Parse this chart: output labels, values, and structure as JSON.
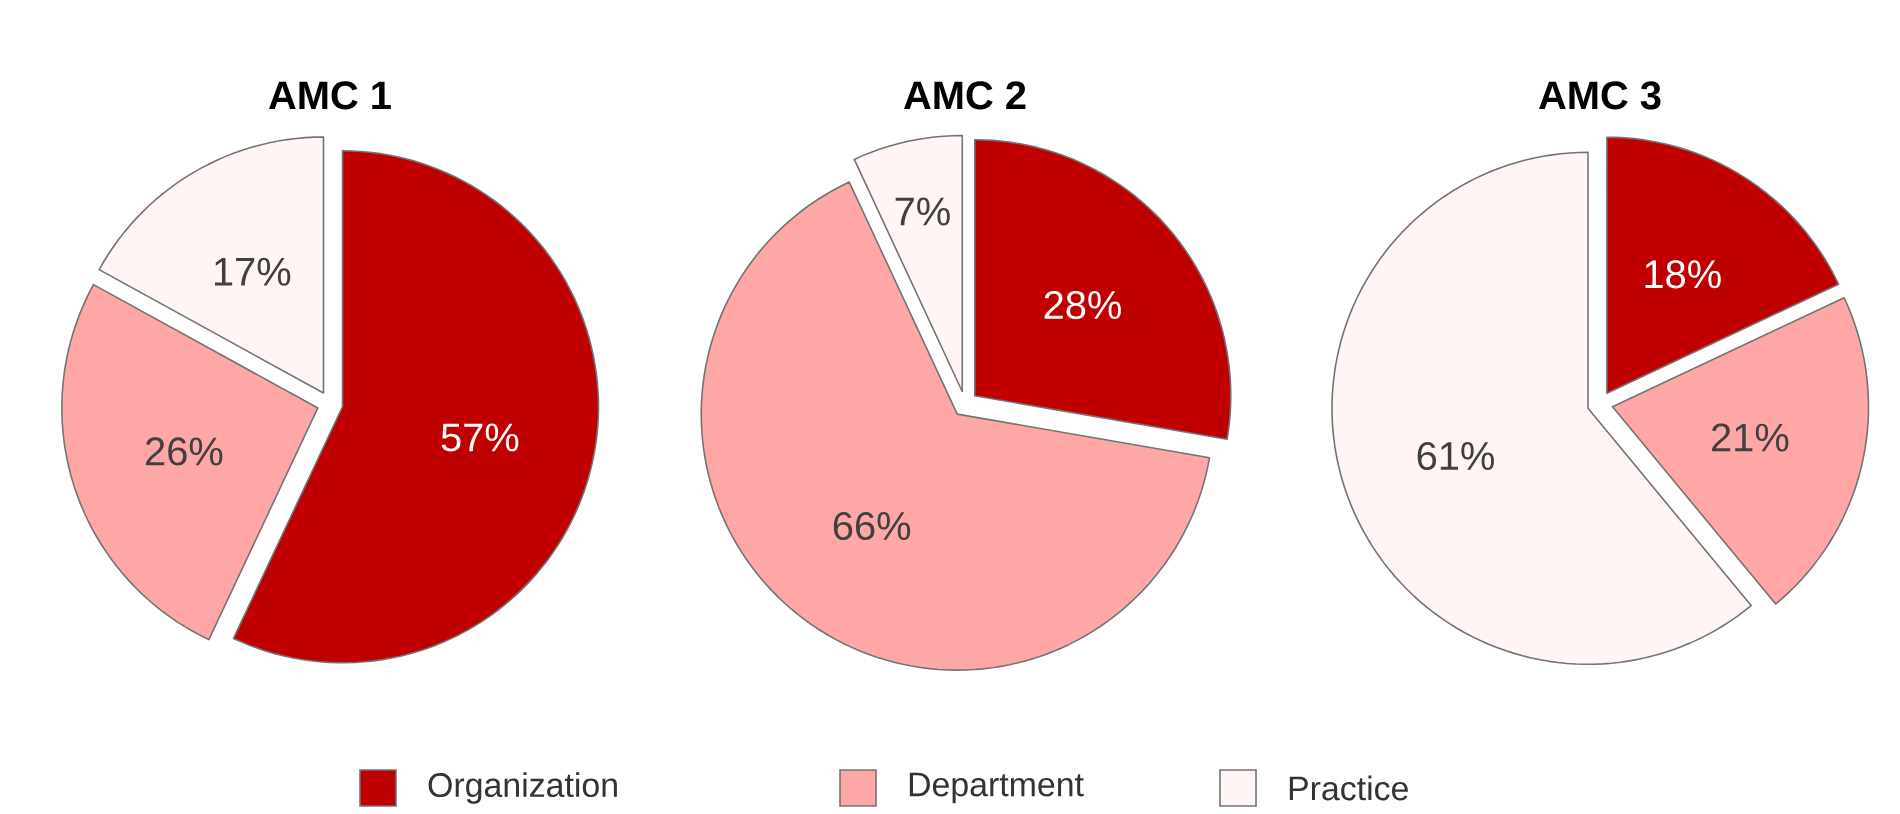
{
  "chart_data": [
    {
      "type": "pie",
      "title": "AMC 1",
      "categories": [
        "Organization",
        "Department",
        "Practice"
      ],
      "values": [
        57,
        26,
        17
      ],
      "value_labels": [
        "57%",
        "26%",
        "17%"
      ],
      "colors": [
        "#c00000",
        "#ffa7a7",
        "#fff5f5"
      ],
      "legend": "bottom"
    },
    {
      "type": "pie",
      "title": "AMC 2",
      "categories": [
        null,
        null,
        null
      ],
      "values": [
        28,
        66,
        7
      ],
      "value_labels": [
        "28%",
        "66%",
        "7%"
      ],
      "colors": [
        "#c00000",
        "#ffa7a7",
        "#fff5f5"
      ]
    },
    {
      "type": "pie",
      "title": "AMC 3",
      "categories": [
        null,
        null,
        null
      ],
      "values": [
        18,
        21,
        61
      ],
      "value_labels": [
        "18%",
        "21%",
        "61%"
      ],
      "colors": [
        "#c00000",
        "#ffa7a7",
        "#fff5f5"
      ]
    }
  ]
}
